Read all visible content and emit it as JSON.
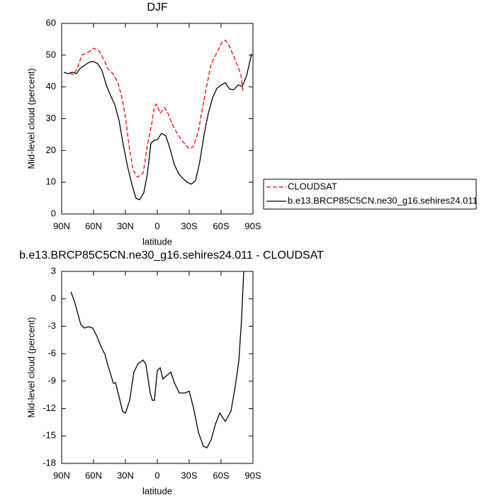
{
  "chart_data": [
    {
      "type": "line",
      "title": "DJF",
      "xlabel": "latitude",
      "ylabel": "Mid-level cloud (percent)",
      "xlim": [
        90,
        -90
      ],
      "xticks": [
        {
          "value": 90,
          "label": "90N"
        },
        {
          "value": 60,
          "label": "60N"
        },
        {
          "value": 30,
          "label": "30N"
        },
        0,
        {
          "value": -30,
          "label": "30S"
        },
        {
          "value": -60,
          "label": "60S"
        },
        {
          "value": -90,
          "label": "90S"
        }
      ],
      "ylim": [
        0,
        60
      ],
      "yticks": [
        0,
        10,
        20,
        30,
        40,
        50,
        60
      ],
      "legend": "right",
      "series": [
        {
          "name": "CLOUDSAT",
          "color": "#ff0000",
          "dash": true,
          "x": [
            82.5,
            78.7,
            74.7,
            71,
            65,
            60,
            54.7,
            50,
            46.7,
            41.3,
            36.7,
            33.3,
            30,
            26.7,
            22.7,
            18.7,
            13.3,
            9.3,
            5.3,
            2.7,
            0.7,
            -2.7,
            -6.7,
            -10,
            -14,
            -18.7,
            -24,
            -30,
            -34,
            -38.7,
            -44,
            -50.7,
            -56,
            -60.7,
            -64,
            -67.3,
            -72,
            -76,
            -78.7,
            -80.7
          ],
          "values": [
            44.4,
            43.8,
            46.4,
            50,
            50.9,
            52.2,
            51.3,
            48.4,
            45.8,
            44,
            41,
            36.6,
            30.6,
            21.7,
            13.8,
            11.6,
            12.9,
            21.7,
            28.3,
            33.9,
            34.6,
            31.7,
            33.5,
            31.7,
            28.3,
            25.4,
            22.8,
            20.5,
            21.2,
            26.1,
            36.2,
            47.3,
            50.7,
            54,
            54.7,
            53.1,
            49.6,
            46.2,
            43.8,
            38.4
          ]
        },
        {
          "name": "b.e13.BRCP85C5CN.ne30_g16.sehires24.011",
          "color": "#000000",
          "dash": false,
          "x": [
            88,
            84,
            80,
            76,
            72.7,
            68,
            64,
            60,
            56,
            52,
            48,
            44,
            40,
            36,
            32,
            28,
            24,
            20,
            16.7,
            12.7,
            9.3,
            6,
            2.7,
            0,
            -4,
            -8,
            -12,
            -16,
            -20,
            -24,
            -28,
            -32,
            -36,
            -40,
            -44,
            -48,
            -52,
            -56,
            -60,
            -64,
            -68,
            -72,
            -76,
            -80,
            -84,
            -88.7
          ],
          "values": [
            44.6,
            44.2,
            44.6,
            44.2,
            45.8,
            46.9,
            47.8,
            48,
            47.3,
            45.1,
            40.6,
            37.3,
            34.4,
            29.5,
            21.7,
            15,
            9.4,
            4.9,
            4.5,
            6.7,
            12.7,
            22.3,
            23.2,
            23.4,
            25.4,
            24.6,
            20.5,
            15.6,
            12.7,
            11.2,
            10,
            9.4,
            10.5,
            16.5,
            25,
            31.7,
            36.6,
            39.5,
            40.6,
            41.3,
            39.3,
            39.1,
            40.6,
            40.2,
            43.5,
            50.4
          ]
        }
      ]
    },
    {
      "type": "line",
      "title": "b.e13.BRCP85C5CN.ne30_g16.sehires24.011 - CLOUDSAT",
      "xlabel": "latitude",
      "ylabel": "Mid-level cloud (percent)",
      "xlim": [
        90,
        -90
      ],
      "xticks": [
        {
          "value": 90,
          "label": "90N"
        },
        {
          "value": 60,
          "label": "60N"
        },
        {
          "value": 30,
          "label": "30N"
        },
        0,
        {
          "value": -30,
          "label": "30S"
        },
        {
          "value": -60,
          "label": "60S"
        },
        {
          "value": -90,
          "label": "90S"
        }
      ],
      "ylim": [
        -18,
        3
      ],
      "yticks": [
        -18,
        -15,
        -12,
        -9,
        -6,
        -3,
        0,
        3
      ],
      "series": [
        {
          "color": "#000000",
          "dash": false,
          "x": [
            81.3,
            78,
            74.7,
            72,
            68.7,
            64.7,
            60.7,
            56.7,
            53.3,
            49.3,
            46,
            41.3,
            39.3,
            36,
            32.7,
            30,
            26,
            22,
            18,
            13.3,
            10.7,
            6.7,
            4.7,
            2.7,
            0,
            -2.7,
            -5.3,
            -8.7,
            -12.7,
            -16,
            -20.7,
            -26,
            -30,
            -34,
            -38.7,
            -43.3,
            -46.7,
            -50.7,
            -54.7,
            -58.7,
            -64,
            -69.3,
            -73.3,
            -76.7,
            -79.3,
            -81.3
          ],
          "values": [
            0.75,
            -0.26,
            -1.65,
            -2.81,
            -3.2,
            -3.05,
            -3.2,
            -4.13,
            -5.14,
            -6.07,
            -7.47,
            -9.25,
            -9.17,
            -10.7,
            -12.3,
            -12.5,
            -11.1,
            -8,
            -7.08,
            -6.7,
            -7.2,
            -10.3,
            -11.1,
            -11.1,
            -7.85,
            -7.54,
            -8.78,
            -8.4,
            -8,
            -9.17,
            -10.3,
            -10.3,
            -10.1,
            -11.9,
            -14.6,
            -16.1,
            -16.3,
            -15.4,
            -13.7,
            -12.5,
            -13.4,
            -12.3,
            -9.6,
            -6.8,
            -2.2,
            3
          ]
        }
      ]
    }
  ]
}
